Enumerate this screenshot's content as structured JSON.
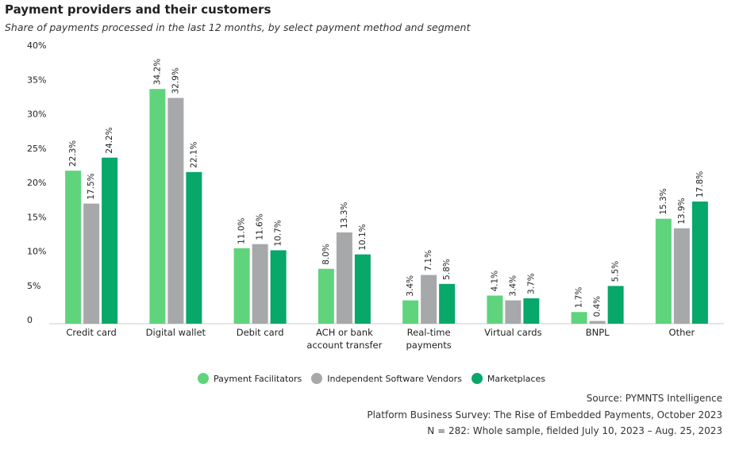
{
  "chart_data": {
    "type": "bar",
    "title": "Payment providers and their customers",
    "subtitle": "Share of payments processed in the last 12 months, by select payment method and segment",
    "categories": [
      "Credit card",
      "Digital wallet",
      "Debit card",
      "ACH or bank account transfer",
      "Real-time payments",
      "Virtual cards",
      "BNPL",
      "Other"
    ],
    "series": [
      {
        "name": "Payment Facilitators",
        "color": "#5fd47c",
        "values": [
          22.3,
          34.2,
          11.0,
          8.0,
          3.4,
          4.1,
          1.7,
          15.3
        ],
        "value_labels": [
          "22.3%",
          "34.2%",
          "11.0%",
          "8.0%",
          "3.4%",
          "4.1%",
          "1.7%",
          "15.3%"
        ]
      },
      {
        "name": "Independent Software Vendors",
        "color": "#a7a8aa",
        "values": [
          17.5,
          32.9,
          11.6,
          13.3,
          7.1,
          3.4,
          0.4,
          13.9
        ],
        "value_labels": [
          "17.5%",
          "32.9%",
          "11.6%",
          "13.3%",
          "7.1%",
          "3.4%",
          "0.4%",
          "13.9%"
        ]
      },
      {
        "name": "Marketplaces",
        "color": "#08a76a",
        "values": [
          24.2,
          22.1,
          10.7,
          10.1,
          5.8,
          3.7,
          5.5,
          17.8
        ],
        "value_labels": [
          "24.2%",
          "22.1%",
          "10.7%",
          "10.1%",
          "5.8%",
          "3.7%",
          "5.5%",
          "17.8%"
        ]
      }
    ],
    "ylim": [
      0,
      40
    ],
    "yticks": [
      0,
      {
        "value": 5,
        "label": "5%"
      },
      {
        "value": 10,
        "label": "10%"
      },
      {
        "value": 15,
        "label": "15%"
      },
      {
        "value": 20,
        "label": "20%"
      },
      {
        "value": 25,
        "label": "25%"
      },
      {
        "value": 30,
        "label": "30%"
      },
      {
        "value": 35,
        "label": "35%"
      },
      {
        "value": 40,
        "label": "40%"
      }
    ],
    "sources": [
      "Source: PYMNTS Intelligence",
      "Platform Business Survey: The Rise of Embedded Payments, October 2023",
      "N = 282: Whole sample, fielded July 10, 2023 – Aug. 25, 2023"
    ]
  }
}
